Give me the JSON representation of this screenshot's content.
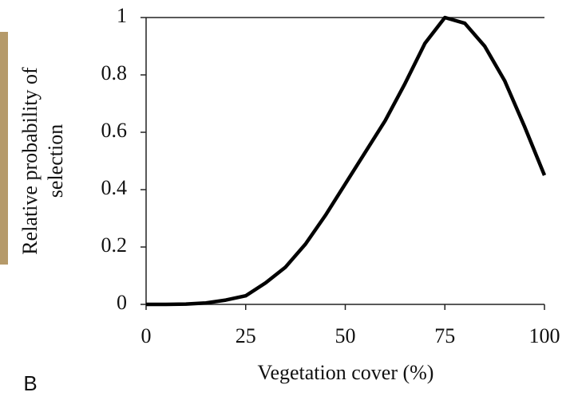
{
  "panel_label": "B",
  "chart_data": {
    "type": "line",
    "xlabel": "Vegetation cover (%)",
    "ylabel": [
      "Relative probability of",
      "selection"
    ],
    "x": [
      0,
      5,
      10,
      15,
      20,
      25,
      30,
      35,
      40,
      45,
      50,
      55,
      60,
      65,
      70,
      75,
      80,
      85,
      90,
      95,
      100
    ],
    "series": [
      {
        "color": "#000000",
        "values": [
          0,
          0,
          0.001,
          0.005,
          0.015,
          0.03,
          0.075,
          0.13,
          0.21,
          0.31,
          0.42,
          0.53,
          0.64,
          0.77,
          0.91,
          1.0,
          0.98,
          0.9,
          0.78,
          0.62,
          0.45
        ]
      }
    ],
    "xlim": [
      0,
      100
    ],
    "xticks": [
      0,
      25,
      50,
      75,
      100
    ],
    "ylim": [
      0,
      1
    ],
    "yticks": [
      0,
      0.2,
      0.4,
      0.6,
      0.8,
      1
    ]
  }
}
